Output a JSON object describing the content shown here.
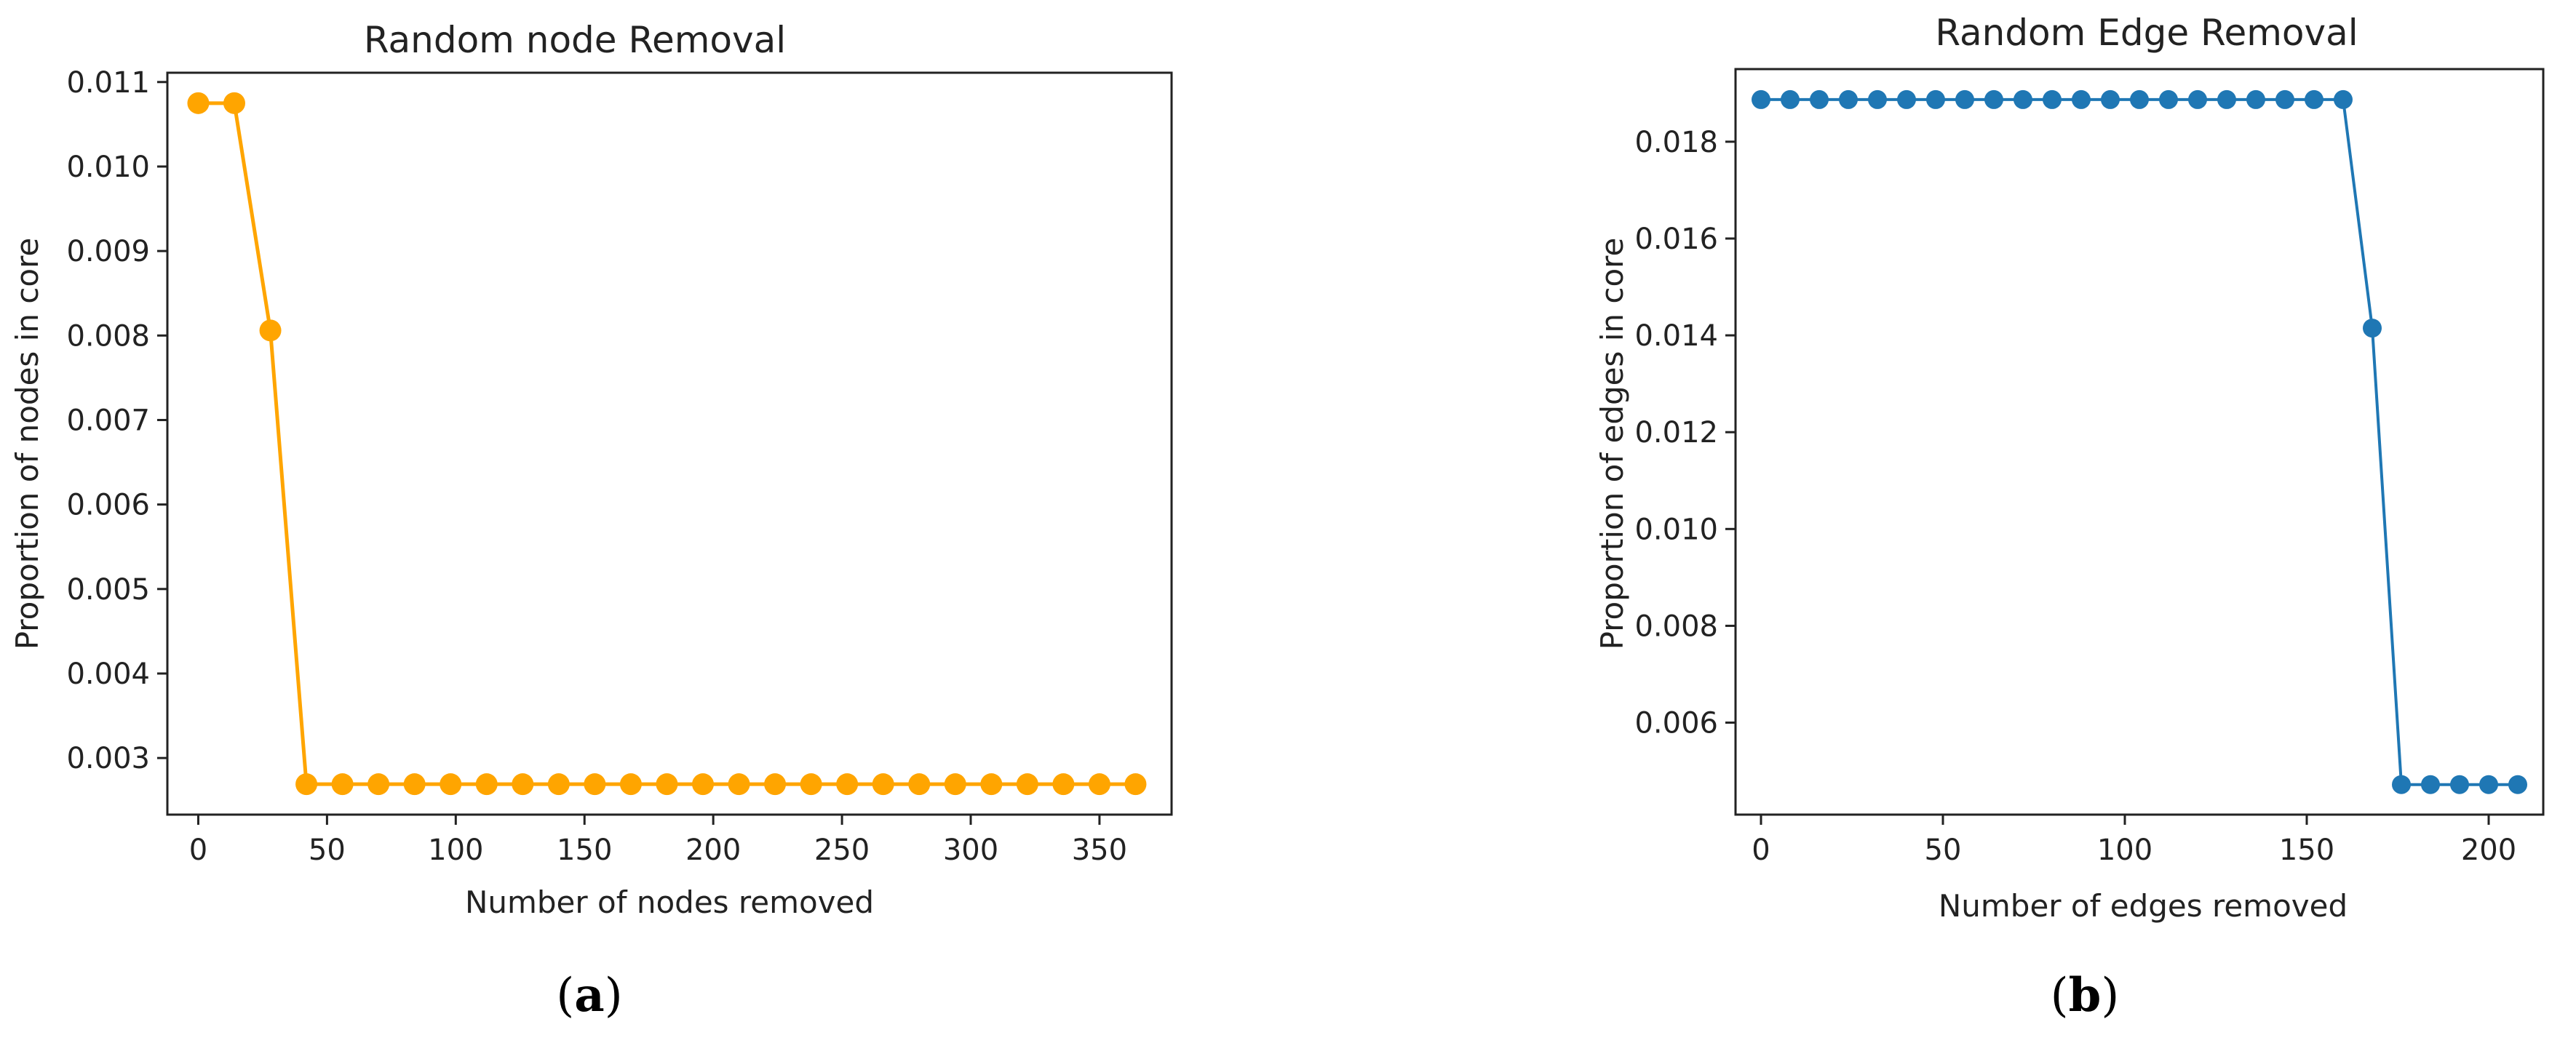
{
  "chart_data": [
    {
      "type": "line",
      "title": "Random node Removal",
      "xlabel": "Number of nodes removed",
      "ylabel": "Proportion of nodes in core",
      "xlim": [
        -12,
        378
      ],
      "ylim": [
        0.00233,
        0.01111
      ],
      "xticks": [
        0,
        50,
        100,
        150,
        200,
        250,
        300,
        350
      ],
      "yticks": [
        0.003,
        0.004,
        0.005,
        0.006,
        0.007,
        0.008,
        0.009,
        0.01,
        0.011
      ],
      "ytick_decimals": 3,
      "color": "#FFA500",
      "grid": false,
      "caption_letter": "a",
      "series": [
        {
          "x": [
            0,
            14,
            28,
            42,
            56,
            70,
            84,
            98,
            112,
            126,
            140,
            154,
            168,
            182,
            196,
            210,
            224,
            238,
            252,
            266,
            280,
            294,
            308,
            322,
            336,
            350,
            364
          ],
          "y": [
            0.01075,
            0.01075,
            0.00806,
            0.00269,
            0.00269,
            0.00269,
            0.00269,
            0.00269,
            0.00269,
            0.00269,
            0.00269,
            0.00269,
            0.00269,
            0.00269,
            0.00269,
            0.00269,
            0.00269,
            0.00269,
            0.00269,
            0.00269,
            0.00269,
            0.00269,
            0.00269,
            0.00269,
            0.00269,
            0.00269,
            0.00269
          ]
        }
      ]
    },
    {
      "type": "line",
      "title": "Random Edge Removal",
      "xlabel": "Number of edges removed",
      "ylabel": "Proportion of edges in core",
      "xlim": [
        -7,
        215
      ],
      "ylim": [
        0.0041,
        0.0195
      ],
      "xticks": [
        0,
        50,
        100,
        150,
        200
      ],
      "yticks": [
        0.006,
        0.008,
        0.01,
        0.012,
        0.014,
        0.016,
        0.018
      ],
      "ytick_decimals": 3,
      "color": "#1F77B4",
      "grid": false,
      "caption_letter": "b",
      "series": [
        {
          "x": [
            0,
            8,
            16,
            24,
            32,
            40,
            48,
            56,
            64,
            72,
            80,
            88,
            96,
            104,
            112,
            120,
            128,
            136,
            144,
            152,
            160,
            168,
            176,
            184,
            192,
            200,
            208
          ],
          "y": [
            0.01887,
            0.01887,
            0.01887,
            0.01887,
            0.01887,
            0.01887,
            0.01887,
            0.01887,
            0.01887,
            0.01887,
            0.01887,
            0.01887,
            0.01887,
            0.01887,
            0.01887,
            0.01887,
            0.01887,
            0.01887,
            0.01887,
            0.01887,
            0.01887,
            0.01415,
            0.00472,
            0.00472,
            0.00472,
            0.00472,
            0.00472
          ]
        }
      ]
    }
  ]
}
